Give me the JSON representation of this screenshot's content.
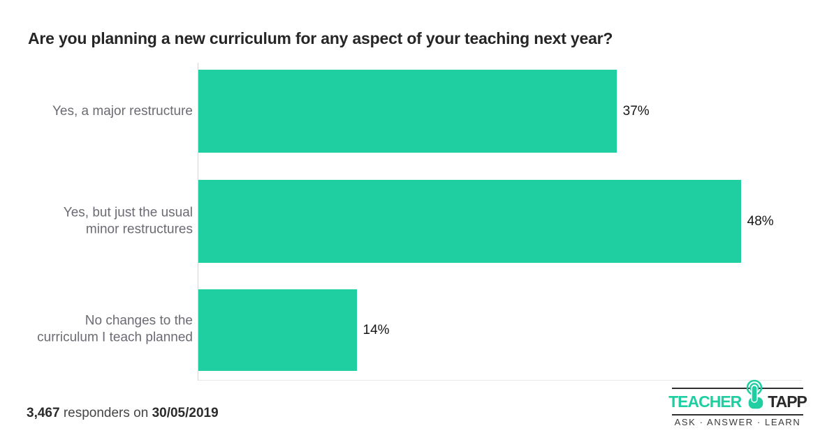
{
  "title": "Are you planning a new curriculum for any aspect of your teaching next year?",
  "chart_data": {
    "type": "bar",
    "orientation": "horizontal",
    "title": "Are you planning a new curriculum for any aspect of your teaching next year?",
    "categories": [
      "Yes, a major restructure",
      "Yes, but just the usual\nminor restructures",
      "No changes to the\ncurriculum I teach planned"
    ],
    "values": [
      37,
      48,
      14
    ],
    "value_labels": [
      "37%",
      "48%",
      "14%"
    ],
    "xlabel": "",
    "ylabel": "",
    "xlim": [
      0,
      53.4
    ],
    "grid": false,
    "legend": "none",
    "bar_color": "#1fcfa2"
  },
  "footer": {
    "responders_count": "3,467",
    "responders_text": "responders on",
    "date": "30/05/2019"
  },
  "logo": {
    "brand_first": "TEACHER",
    "brand_second": "TAPP",
    "tagline": "ASK · ANSWER · LEARN",
    "accent_color": "#1fcfa2"
  }
}
